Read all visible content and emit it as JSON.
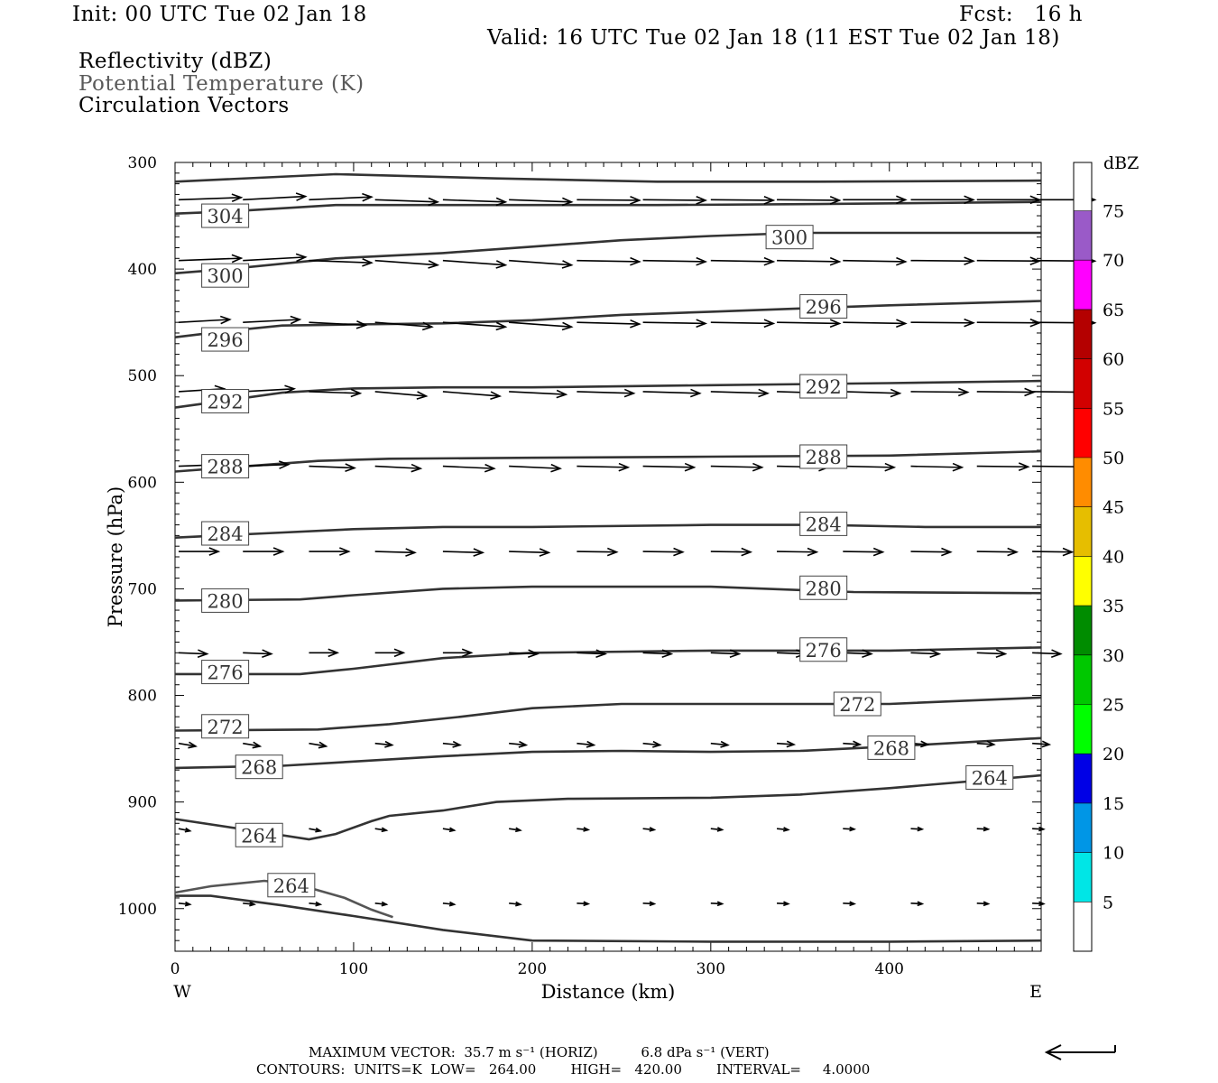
{
  "header": {
    "init": "Init: 00 UTC Tue 02 Jan 18",
    "fcst": "Fcst:   16 h",
    "valid": "Valid: 16 UTC Tue 02 Jan 18 (11 EST Tue 02 Jan 18)"
  },
  "fields": {
    "reflectivity": "Reflectivity (dBZ)",
    "theta": "Potential Temperature (K)",
    "vectors": "Circulation Vectors"
  },
  "colors": {
    "contour": "#333333",
    "contour_light": "#555555",
    "axis": "#000000"
  },
  "chart_data": {
    "type": "line",
    "xlabel": "Distance (km)",
    "ylabel": "Pressure (hPa)",
    "xlim": [
      0,
      485
    ],
    "ylim": [
      1040,
      300
    ],
    "y_log": false,
    "x_ticks": [
      0,
      100,
      200,
      300,
      400
    ],
    "y_ticks": [
      300,
      400,
      500,
      600,
      700,
      800,
      900,
      1000
    ],
    "x_end_labels": {
      "left": "W",
      "right": "E"
    },
    "contour_units": "K",
    "contour_interval": 4,
    "series": [
      {
        "label": "",
        "x": [
          0,
          90,
          180,
          270,
          360,
          485
        ],
        "y": [
          318,
          311,
          315,
          318,
          318,
          317
        ]
      },
      {
        "label": "304",
        "x": [
          0,
          30,
          90,
          180,
          270,
          360,
          485
        ],
        "y": [
          348,
          346,
          340,
          340,
          340,
          339,
          337
        ]
      },
      {
        "label": "300",
        "x": [
          0,
          30,
          90,
          150,
          200,
          250,
          300,
          350,
          485
        ],
        "y": [
          404,
          400,
          390,
          385,
          379,
          373,
          369,
          366,
          366
        ]
      },
      {
        "label": "296",
        "x": [
          0,
          30,
          60,
          100,
          150,
          200,
          250,
          300,
          350,
          400,
          485
        ],
        "y": [
          464,
          458,
          453,
          452,
          451,
          448,
          443,
          440,
          437,
          434,
          430
        ]
      },
      {
        "label": "292",
        "x": [
          0,
          30,
          60,
          100,
          150,
          200,
          300,
          400,
          485
        ],
        "y": [
          530,
          523,
          516,
          512,
          511,
          511,
          509,
          507,
          505
        ]
      },
      {
        "label": "288",
        "x": [
          0,
          40,
          80,
          120,
          200,
          300,
          400,
          485
        ],
        "y": [
          590,
          585,
          580,
          578,
          577,
          576,
          575,
          571
        ]
      },
      {
        "label": "284",
        "x": [
          0,
          50,
          100,
          150,
          200,
          300,
          360,
          420,
          485
        ],
        "y": [
          652,
          648,
          644,
          642,
          642,
          640,
          640,
          642,
          642
        ]
      },
      {
        "label": "280",
        "x": [
          0,
          70,
          100,
          150,
          200,
          250,
          300,
          380,
          485
        ],
        "y": [
          711,
          710,
          706,
          700,
          698,
          698,
          698,
          703,
          704
        ]
      },
      {
        "label": "276",
        "x": [
          0,
          70,
          100,
          150,
          200,
          300,
          400,
          485
        ],
        "y": [
          780,
          780,
          775,
          765,
          760,
          758,
          758,
          755
        ]
      },
      {
        "label": "272",
        "x": [
          0,
          80,
          120,
          160,
          200,
          250,
          300,
          400,
          485
        ],
        "y": [
          833,
          832,
          827,
          820,
          812,
          808,
          808,
          808,
          802
        ]
      },
      {
        "label": "268",
        "x": [
          0,
          60,
          100,
          150,
          200,
          250,
          300,
          350,
          400,
          485
        ],
        "y": [
          868,
          866,
          862,
          857,
          853,
          852,
          853,
          852,
          848,
          840
        ]
      },
      {
        "label": "264",
        "x": [
          0,
          40,
          75,
          90,
          110,
          120,
          150,
          180,
          220,
          300,
          350,
          400,
          485
        ],
        "y": [
          916,
          926,
          935,
          930,
          918,
          913,
          908,
          900,
          897,
          896,
          893,
          887,
          875
        ]
      },
      {
        "label": "264",
        "x": [
          0,
          20,
          50,
          70,
          95,
          110,
          122
        ],
        "y": [
          985,
          979,
          974,
          978,
          990,
          1001,
          1008
        ]
      },
      {
        "label": "",
        "x": [
          0,
          20,
          60,
          100,
          150,
          200,
          300,
          400,
          485
        ],
        "y": [
          988,
          988,
          997,
          1007,
          1020,
          1030,
          1031,
          1031,
          1030
        ]
      }
    ],
    "contour_labels": [
      {
        "text": "304",
        "x": 19,
        "y": 350
      },
      {
        "text": "300",
        "x": 19,
        "y": 406
      },
      {
        "text": "300",
        "x": 335,
        "y": 370
      },
      {
        "text": "296",
        "x": 19,
        "y": 466
      },
      {
        "text": "296",
        "x": 354,
        "y": 435
      },
      {
        "text": "292",
        "x": 19,
        "y": 524
      },
      {
        "text": "292",
        "x": 354,
        "y": 510
      },
      {
        "text": "288",
        "x": 19,
        "y": 585
      },
      {
        "text": "288",
        "x": 354,
        "y": 576
      },
      {
        "text": "284",
        "x": 19,
        "y": 648
      },
      {
        "text": "284",
        "x": 354,
        "y": 639
      },
      {
        "text": "280",
        "x": 19,
        "y": 711
      },
      {
        "text": "280",
        "x": 354,
        "y": 699
      },
      {
        "text": "276",
        "x": 19,
        "y": 778
      },
      {
        "text": "276",
        "x": 354,
        "y": 757
      },
      {
        "text": "272",
        "x": 19,
        "y": 829
      },
      {
        "text": "272",
        "x": 373,
        "y": 808
      },
      {
        "text": "268",
        "x": 38,
        "y": 867
      },
      {
        "text": "268",
        "x": 392,
        "y": 849
      },
      {
        "text": "264",
        "x": 38,
        "y": 931
      },
      {
        "text": "264",
        "x": 447,
        "y": 877
      },
      {
        "text": "264",
        "x": 56,
        "y": 978
      }
    ],
    "vector_rows": [
      {
        "p": 335,
        "x": [
          2,
          38,
          75,
          112,
          150,
          187,
          225,
          262,
          300,
          337,
          374,
          412,
          449,
          480
        ],
        "u": [
          11,
          11,
          11,
          11,
          11,
          11,
          11,
          11,
          11,
          11,
          11,
          11,
          11,
          11
        ],
        "w": [
          -0.4,
          -0.6,
          -0.5,
          0.4,
          0.4,
          0.4,
          0.1,
          0.1,
          0.1,
          0.1,
          0,
          0,
          0,
          0
        ]
      },
      {
        "p": 392,
        "x": [
          2,
          38,
          75,
          112,
          150,
          187,
          225,
          262,
          300,
          337,
          374,
          412,
          449,
          480
        ],
        "u": [
          11,
          11,
          11,
          11,
          11,
          11,
          11,
          11,
          11,
          11,
          11,
          11,
          11,
          11
        ],
        "w": [
          -0.4,
          -0.6,
          0.4,
          0.8,
          0.8,
          0.8,
          0.2,
          0.2,
          0.2,
          0.2,
          0.2,
          0.1,
          0.1,
          0.1
        ]
      },
      {
        "p": 450,
        "x": [
          2,
          38,
          75,
          112,
          150,
          187,
          225,
          262,
          300,
          337,
          374,
          412,
          449,
          480
        ],
        "u": [
          9,
          10,
          10,
          10,
          11,
          11,
          11,
          11,
          11,
          11,
          11,
          11,
          11,
          11
        ],
        "w": [
          -0.5,
          -0.5,
          0.5,
          0.8,
          0.8,
          0.8,
          0.3,
          0.2,
          0.2,
          0.2,
          0.2,
          0.1,
          0.1,
          0.1
        ]
      },
      {
        "p": 515,
        "x": [
          2,
          38,
          75,
          112,
          150,
          187,
          225,
          262,
          300,
          337,
          374,
          412,
          449,
          480
        ],
        "u": [
          8,
          9,
          9,
          9,
          10,
          10,
          10,
          10,
          10,
          10,
          10,
          10,
          10,
          9
        ],
        "w": [
          -0.5,
          -0.5,
          0.3,
          0.8,
          0.8,
          0.5,
          0.3,
          0.3,
          0.3,
          0.3,
          0.3,
          0.1,
          0.1,
          0.1
        ]
      },
      {
        "p": 585,
        "x": [
          2,
          38,
          75,
          112,
          150,
          187,
          225,
          262,
          300,
          337,
          374,
          412,
          449,
          480
        ],
        "u": [
          8,
          8,
          8,
          8,
          9,
          9,
          9,
          9,
          9,
          9,
          9,
          9,
          9,
          9
        ],
        "w": [
          -0.3,
          -0.3,
          0.3,
          0.4,
          0.4,
          0.4,
          0.2,
          0.2,
          0.2,
          0.2,
          0.2,
          0.2,
          0.1,
          0.1
        ]
      },
      {
        "p": 665,
        "x": [
          2,
          38,
          75,
          112,
          150,
          187,
          225,
          262,
          300,
          337,
          374,
          412,
          449,
          480
        ],
        "u": [
          7,
          7,
          7,
          7,
          7,
          7,
          7,
          7,
          7,
          7,
          7,
          7,
          7,
          7
        ],
        "w": [
          0,
          0,
          0,
          0.2,
          0.2,
          0.2,
          0.1,
          0.1,
          0.1,
          0.1,
          0.1,
          0.1,
          0.1,
          0.1
        ]
      },
      {
        "p": 760,
        "x": [
          2,
          38,
          75,
          112,
          150,
          187,
          225,
          262,
          300,
          337,
          374,
          412,
          449,
          480
        ],
        "u": [
          5,
          5,
          5,
          5,
          5,
          5,
          5,
          5,
          5,
          5,
          5,
          5,
          5,
          5
        ],
        "w": [
          0.2,
          0.2,
          0,
          0,
          0,
          0.2,
          0.2,
          0.2,
          0.2,
          0.2,
          0.2,
          0.2,
          0.2,
          0.2
        ]
      },
      {
        "p": 845,
        "x": [
          2,
          38,
          75,
          112,
          150,
          187,
          225,
          262,
          300,
          337,
          374,
          412,
          449,
          480
        ],
        "u": [
          3,
          3,
          3,
          3,
          3,
          3,
          3,
          3,
          3,
          3,
          3,
          3,
          3,
          3
        ],
        "w": [
          0.5,
          0.5,
          0.5,
          0.3,
          0.3,
          0.3,
          0.3,
          0.3,
          0.3,
          0.2,
          0.2,
          0.2,
          0.2,
          0.2
        ]
      },
      {
        "p": 925,
        "x": [
          2,
          38,
          75,
          112,
          150,
          187,
          225,
          262,
          300,
          337,
          374,
          412,
          449,
          480
        ],
        "u": [
          2,
          2,
          2,
          2,
          2,
          2,
          2,
          2,
          2,
          2,
          2,
          2,
          2,
          2
        ],
        "w": [
          0.4,
          0.4,
          0.4,
          0.3,
          0.3,
          0.3,
          0.2,
          0.2,
          0.2,
          0.2,
          0.1,
          0.1,
          0.1,
          0.1
        ]
      },
      {
        "p": 995,
        "x": [
          2,
          38,
          75,
          112,
          150,
          187,
          225,
          262,
          300,
          337,
          374,
          412,
          449,
          480
        ],
        "u": [
          2,
          2,
          2,
          2,
          2,
          2,
          2,
          2,
          2,
          2,
          2,
          2,
          2,
          2
        ],
        "w": [
          0.2,
          0.2,
          0.2,
          0.2,
          0.2,
          0.2,
          0.1,
          0.1,
          0.1,
          0.1,
          0.1,
          0.1,
          0.1,
          0.1
        ]
      }
    ],
    "colorbar": {
      "title": "dBZ",
      "bins": [
        {
          "label": "5",
          "color": "#00e6e6"
        },
        {
          "label": "10",
          "color": "#0096e6"
        },
        {
          "label": "15",
          "color": "#0000e6"
        },
        {
          "label": "20",
          "color": "#00ff00"
        },
        {
          "label": "25",
          "color": "#00c800"
        },
        {
          "label": "30",
          "color": "#008c00"
        },
        {
          "label": "35",
          "color": "#ffff00"
        },
        {
          "label": "40",
          "color": "#e6be00"
        },
        {
          "label": "45",
          "color": "#ff8c00"
        },
        {
          "label": "50",
          "color": "#ff0000"
        },
        {
          "label": "55",
          "color": "#d20000"
        },
        {
          "label": "60",
          "color": "#b40000"
        },
        {
          "label": "65",
          "color": "#ff00ff"
        },
        {
          "label": "70",
          "color": "#9a5ac8"
        },
        {
          "label": "75",
          "color": "#ffffff"
        }
      ]
    }
  },
  "footer": {
    "line1": "MAXIMUM VECTOR:  35.7 m s⁻¹ (HORIZ)          6.8 dPa s⁻¹ (VERT)",
    "line2": "CONTOURS:  UNITS=K  LOW=   264.00        HIGH=   420.00        INTERVAL=     4.0000"
  }
}
